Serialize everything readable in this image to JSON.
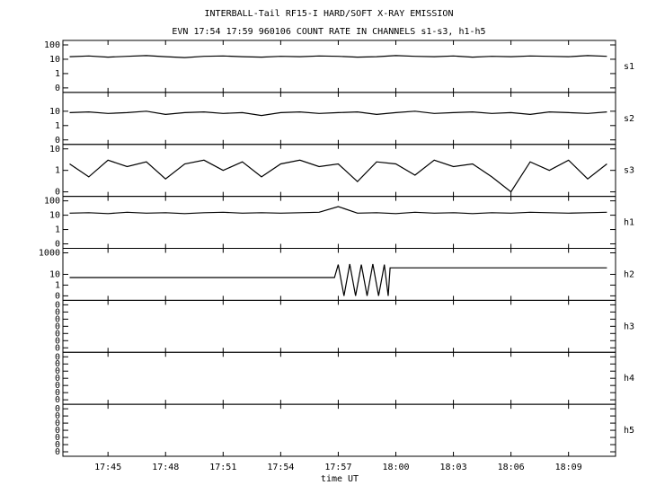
{
  "title": "INTERBALL-Tail RF15-I HARD/SOFT X-RAY EMISSION",
  "subtitle": "EVN 17:54 17:59 960106  COUNT RATE IN CHANNELS s1-s3, h1-h5",
  "xlabel": "time UT",
  "xlim": [
    42.65,
    71.45
  ],
  "xticks": [
    {
      "value": 45,
      "label": "17:45"
    },
    {
      "value": 48,
      "label": "17:48"
    },
    {
      "value": 51,
      "label": "17:51"
    },
    {
      "value": 54,
      "label": "17:54"
    },
    {
      "value": 57,
      "label": "17:57"
    },
    {
      "value": 60,
      "label": "18:00"
    },
    {
      "value": 63,
      "label": "18:03"
    },
    {
      "value": 66,
      "label": "18:06"
    },
    {
      "value": 69,
      "label": "18:09"
    }
  ],
  "chart_data": [
    {
      "type": "line",
      "label": "s1",
      "log": true,
      "ylim": [
        0.1,
        100
      ],
      "yticks": [
        100,
        10,
        1,
        {
          "value": 0.1,
          "label": "0"
        }
      ],
      "x": [
        43,
        44,
        45,
        46,
        47,
        48,
        49,
        50,
        51,
        52,
        53,
        54,
        55,
        56,
        57,
        58,
        59,
        60,
        61,
        62,
        63,
        64,
        65,
        66,
        67,
        68,
        69,
        70,
        71
      ],
      "values": [
        15,
        17,
        14,
        16,
        18,
        15,
        13,
        16,
        17,
        15,
        14,
        16,
        15,
        17,
        16,
        14,
        15,
        18,
        16,
        15,
        17,
        14,
        16,
        15,
        17,
        16,
        15,
        18,
        16
      ]
    },
    {
      "type": "line",
      "label": "s2",
      "log": true,
      "ylim": [
        0.1,
        100
      ],
      "yticks": [
        10,
        1,
        {
          "value": 0.1,
          "label": "0"
        }
      ],
      "x": [
        43,
        44,
        45,
        46,
        47,
        48,
        49,
        50,
        51,
        52,
        53,
        54,
        55,
        56,
        57,
        58,
        59,
        60,
        61,
        62,
        63,
        64,
        65,
        66,
        67,
        68,
        69,
        70,
        71
      ],
      "values": [
        8,
        9,
        7,
        8,
        10,
        6,
        8,
        9,
        7,
        8,
        5,
        8,
        9,
        7,
        8,
        9,
        6,
        8,
        10,
        7,
        8,
        9,
        7,
        8,
        6,
        9,
        8,
        7,
        9
      ]
    },
    {
      "type": "line",
      "label": "s3",
      "log": true,
      "ylim": [
        0.1,
        10
      ],
      "yticks": [
        10,
        1,
        {
          "value": 0.1,
          "label": "0"
        }
      ],
      "x": [
        43,
        44,
        45,
        46,
        47,
        48,
        49,
        50,
        51,
        52,
        53,
        54,
        55,
        56,
        57,
        58,
        59,
        60,
        61,
        62,
        63,
        64,
        65,
        66,
        67,
        68,
        69,
        70,
        71
      ],
      "values": [
        2,
        0.5,
        3,
        1.5,
        2.5,
        0.4,
        2,
        3,
        1,
        2.5,
        0.5,
        2,
        3,
        1.5,
        2,
        0.3,
        2.5,
        2,
        0.6,
        3,
        1.5,
        2,
        0.5,
        0.1,
        2.5,
        1,
        3,
        0.4,
        2
      ]
    },
    {
      "type": "line",
      "label": "h1",
      "log": true,
      "ylim": [
        0.1,
        100
      ],
      "yticks": [
        100,
        10,
        1,
        {
          "value": 0.1,
          "label": "0"
        }
      ],
      "x": [
        43,
        44,
        45,
        46,
        47,
        48,
        49,
        50,
        51,
        52,
        53,
        54,
        55,
        56,
        57,
        58,
        59,
        60,
        61,
        62,
        63,
        64,
        65,
        66,
        67,
        68,
        69,
        70,
        71
      ],
      "values": [
        14,
        15,
        13,
        16,
        14,
        15,
        13,
        15,
        16,
        14,
        15,
        14,
        15,
        16,
        40,
        14,
        15,
        13,
        16,
        14,
        15,
        13,
        15,
        14,
        16,
        15,
        14,
        15,
        16
      ]
    },
    {
      "type": "line",
      "label": "h2",
      "log": true,
      "ylim": [
        0.1,
        1000
      ],
      "yticks": [
        1000,
        10,
        1,
        {
          "value": 0.1,
          "label": "0"
        }
      ],
      "x": [
        43,
        56.8,
        57,
        57.3,
        57.6,
        57.9,
        58.2,
        58.5,
        58.8,
        59.1,
        59.4,
        59.6,
        59.7,
        71
      ],
      "values": [
        5,
        5,
        80,
        0.1,
        90,
        0.1,
        80,
        0.1,
        90,
        0.1,
        80,
        0.1,
        40,
        40
      ]
    },
    {
      "type": "line",
      "label": "h3",
      "log": false,
      "ylim": [
        0,
        6
      ],
      "yticks": [
        {
          "value": 6,
          "label": "0"
        },
        {
          "value": 5,
          "label": "0"
        },
        {
          "value": 4,
          "label": "0"
        },
        {
          "value": 3,
          "label": "0"
        },
        {
          "value": 2,
          "label": "0"
        },
        {
          "value": 1,
          "label": "0"
        },
        {
          "value": 0,
          "label": "0"
        }
      ]
    },
    {
      "type": "line",
      "label": "h4",
      "log": false,
      "ylim": [
        0,
        6
      ],
      "yticks": [
        {
          "value": 6,
          "label": "0"
        },
        {
          "value": 5,
          "label": "0"
        },
        {
          "value": 4,
          "label": "0"
        },
        {
          "value": 3,
          "label": "0"
        },
        {
          "value": 2,
          "label": "0"
        },
        {
          "value": 1,
          "label": "0"
        },
        {
          "value": 0,
          "label": "0"
        }
      ]
    },
    {
      "type": "line",
      "label": "h5",
      "log": false,
      "ylim": [
        0,
        6
      ],
      "yticks": [
        {
          "value": 6,
          "label": "0"
        },
        {
          "value": 5,
          "label": "0"
        },
        {
          "value": 4,
          "label": "0"
        },
        {
          "value": 3,
          "label": "0"
        },
        {
          "value": 2,
          "label": "0"
        },
        {
          "value": 1,
          "label": "0"
        },
        {
          "value": 0,
          "label": "0"
        }
      ]
    }
  ]
}
